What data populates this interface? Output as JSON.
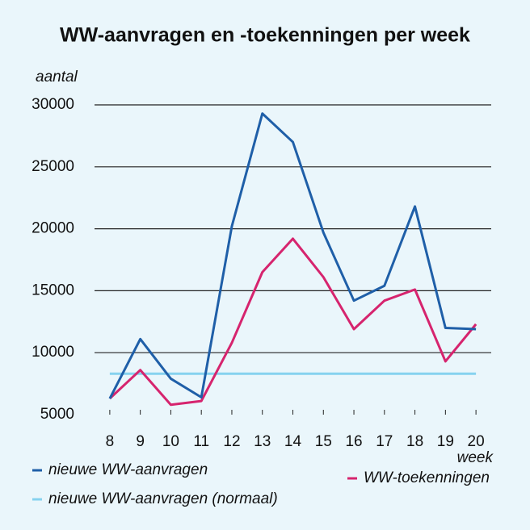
{
  "chart_data": {
    "type": "line",
    "title": "WW-aanvragen en -toekenningen per week",
    "y_label": "aantal",
    "x_label": "week",
    "x": [
      8,
      9,
      10,
      11,
      12,
      13,
      14,
      15,
      16,
      17,
      18,
      19,
      20
    ],
    "series": [
      {
        "name": "nieuwe WW-aanvragen",
        "color": "#1f5fa8",
        "values": [
          6300,
          11100,
          7900,
          6400,
          20200,
          29300,
          27000,
          19700,
          14200,
          15400,
          21800,
          12000,
          11900
        ]
      },
      {
        "name": "WW-toekenningen",
        "color": "#d6246e",
        "values": [
          6300,
          8600,
          5800,
          6100,
          10800,
          16500,
          19200,
          16100,
          11900,
          14200,
          15100,
          9300,
          12300
        ]
      },
      {
        "name": "nieuwe WW-aanvragen (normaal)",
        "color": "#86d2ef",
        "values": [
          8300,
          8300,
          8300,
          8300,
          8300,
          8300,
          8300,
          8300,
          8300,
          8300,
          8300,
          8300,
          8300
        ]
      }
    ],
    "xlim": [
      7.5,
      20.5
    ],
    "xticks": [
      8,
      9,
      10,
      11,
      12,
      13,
      14,
      15,
      16,
      17,
      18,
      19,
      20
    ],
    "ylim": [
      5000,
      30000
    ],
    "yticks": [
      5000,
      10000,
      15000,
      20000,
      25000,
      30000
    ],
    "grid": true
  }
}
